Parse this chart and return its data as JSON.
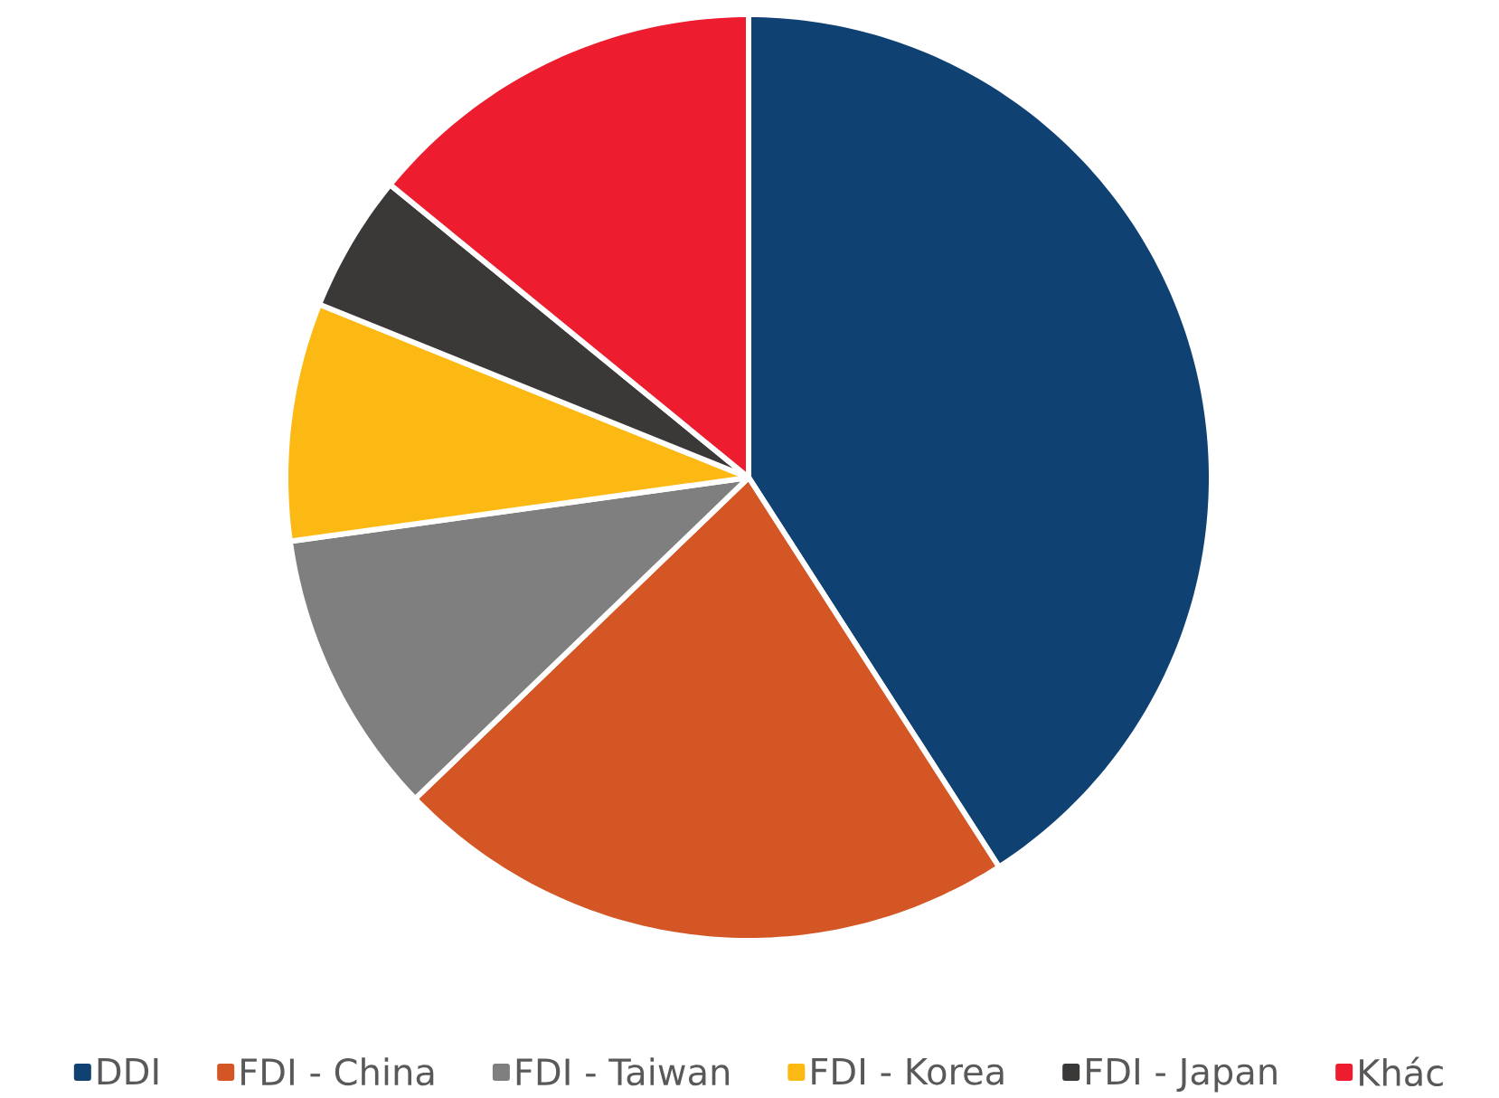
{
  "chart_data": {
    "type": "pie",
    "categories": [
      "DDI",
      "FDI - China",
      "FDI - Taiwan",
      "FDI - Korea",
      "FDI - Japan",
      "Khác"
    ],
    "values": [
      40.9,
      21.9,
      10.0,
      8.3,
      4.8,
      14.1
    ],
    "colors": [
      "#104173",
      "#d35624",
      "#7f7f7f",
      "#fdb913",
      "#3b3838",
      "#ed1c2e"
    ],
    "legend": "bottom"
  }
}
